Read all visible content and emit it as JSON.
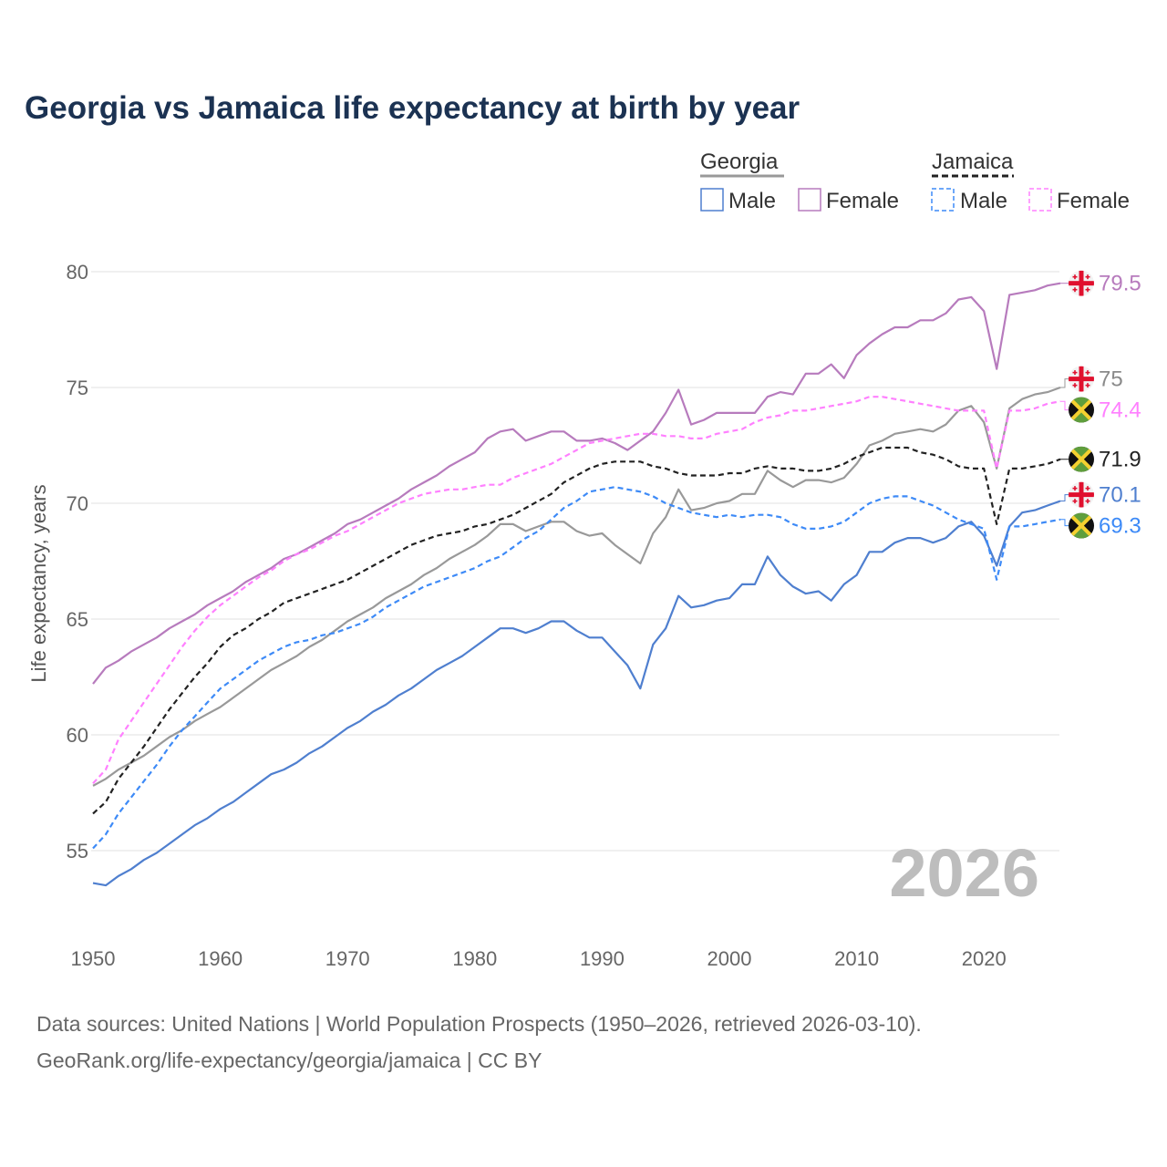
{
  "chart_data": {
    "type": "line",
    "title": "Georgia vs Jamaica life expectancy at birth by year",
    "xlabel": "",
    "ylabel": "Life expectancy, years",
    "xlim": [
      1950,
      2026
    ],
    "ylim": [
      52.5,
      81
    ],
    "x_ticks": [
      "1950",
      "1960",
      "1970",
      "1980",
      "1990",
      "2000",
      "2010",
      "2020"
    ],
    "y_ticks": [
      "55",
      "60",
      "65",
      "70",
      "75",
      "80"
    ],
    "grid": true,
    "current_year_label": "2026",
    "legend": {
      "placement": "top-right",
      "groups": [
        {
          "title": "Georgia",
          "items": [
            "Male",
            "Female"
          ]
        },
        {
          "title": "Jamaica",
          "items": [
            "Male",
            "Female"
          ]
        }
      ]
    },
    "x_start": 1950,
    "series": [
      {
        "name": "Georgia Female",
        "country": "georgia",
        "color": "#b77bbd",
        "dashed": false,
        "end_label": "79.5",
        "values": [
          62.2,
          62.9,
          63.2,
          63.6,
          63.9,
          64.2,
          64.6,
          64.9,
          65.2,
          65.6,
          65.9,
          66.2,
          66.6,
          66.9,
          67.2,
          67.6,
          67.8,
          68.1,
          68.4,
          68.7,
          69.1,
          69.3,
          69.6,
          69.9,
          70.2,
          70.6,
          70.9,
          71.2,
          71.6,
          71.9,
          72.2,
          72.8,
          73.1,
          73.2,
          72.7,
          72.9,
          73.1,
          73.1,
          72.7,
          72.7,
          72.8,
          72.6,
          72.3,
          72.7,
          73.1,
          73.9,
          74.9,
          73.4,
          73.6,
          73.9,
          73.9,
          73.9,
          73.9,
          74.6,
          74.8,
          74.7,
          75.6,
          75.6,
          76.0,
          75.4,
          76.4,
          76.9,
          77.3,
          77.6,
          77.6,
          77.9,
          77.9,
          78.2,
          78.8,
          78.9,
          78.3,
          75.8,
          79.0,
          79.1,
          79.2,
          79.4,
          79.5
        ]
      },
      {
        "name": "Georgia Total",
        "country": "georgia",
        "color": "#999999",
        "dashed": false,
        "end_label": "75",
        "values": [
          57.8,
          58.1,
          58.5,
          58.8,
          59.1,
          59.5,
          59.9,
          60.2,
          60.6,
          60.9,
          61.2,
          61.6,
          62.0,
          62.4,
          62.8,
          63.1,
          63.4,
          63.8,
          64.1,
          64.5,
          64.9,
          65.2,
          65.5,
          65.9,
          66.2,
          66.5,
          66.9,
          67.2,
          67.6,
          67.9,
          68.2,
          68.6,
          69.1,
          69.1,
          68.8,
          69.0,
          69.2,
          69.2,
          68.8,
          68.6,
          68.7,
          68.2,
          67.8,
          67.4,
          68.7,
          69.4,
          70.6,
          69.7,
          69.8,
          70.0,
          70.1,
          70.4,
          70.4,
          71.4,
          71.0,
          70.7,
          71.0,
          71.0,
          70.9,
          71.1,
          71.7,
          72.5,
          72.7,
          73.0,
          73.1,
          73.2,
          73.1,
          73.4,
          74.0,
          74.2,
          73.5,
          71.5,
          74.1,
          74.5,
          74.7,
          74.8,
          75.0
        ]
      },
      {
        "name": "Jamaica Female",
        "country": "jamaica",
        "color": "#ff80ff",
        "dashed": true,
        "end_label": "74.4",
        "values": [
          57.9,
          58.5,
          59.8,
          60.6,
          61.4,
          62.2,
          63.0,
          63.8,
          64.5,
          65.1,
          65.6,
          66.0,
          66.4,
          66.8,
          67.1,
          67.5,
          67.8,
          68.0,
          68.3,
          68.6,
          68.8,
          69.1,
          69.4,
          69.7,
          70.0,
          70.2,
          70.4,
          70.5,
          70.6,
          70.6,
          70.7,
          70.8,
          70.8,
          71.1,
          71.3,
          71.5,
          71.7,
          72.0,
          72.3,
          72.6,
          72.7,
          72.8,
          72.9,
          73.0,
          73.0,
          72.9,
          72.9,
          72.8,
          72.8,
          73.0,
          73.1,
          73.2,
          73.5,
          73.7,
          73.8,
          74.0,
          74.0,
          74.1,
          74.2,
          74.3,
          74.4,
          74.6,
          74.6,
          74.5,
          74.4,
          74.3,
          74.2,
          74.1,
          74.0,
          74.0,
          74.0,
          71.5,
          74.0,
          74.0,
          74.1,
          74.3,
          74.4
        ]
      },
      {
        "name": "Jamaica Total",
        "country": "jamaica",
        "color": "#222222",
        "dashed": true,
        "end_label": "71.9",
        "values": [
          56.6,
          57.1,
          58.1,
          58.8,
          59.5,
          60.3,
          61.1,
          61.8,
          62.5,
          63.1,
          63.8,
          64.3,
          64.6,
          65.0,
          65.3,
          65.7,
          65.9,
          66.1,
          66.3,
          66.5,
          66.7,
          67.0,
          67.3,
          67.6,
          67.9,
          68.2,
          68.4,
          68.6,
          68.7,
          68.8,
          69.0,
          69.1,
          69.3,
          69.5,
          69.8,
          70.1,
          70.4,
          70.9,
          71.2,
          71.5,
          71.7,
          71.8,
          71.8,
          71.8,
          71.6,
          71.5,
          71.3,
          71.2,
          71.2,
          71.2,
          71.3,
          71.3,
          71.5,
          71.6,
          71.5,
          71.5,
          71.4,
          71.4,
          71.5,
          71.7,
          72.0,
          72.2,
          72.4,
          72.4,
          72.4,
          72.2,
          72.1,
          71.9,
          71.6,
          71.5,
          71.5,
          69.1,
          71.5,
          71.5,
          71.6,
          71.7,
          71.9
        ]
      },
      {
        "name": "Georgia Male",
        "country": "georgia",
        "color": "#4f7fcf",
        "dashed": false,
        "end_label": "70.1",
        "values": [
          53.6,
          53.5,
          53.9,
          54.2,
          54.6,
          54.9,
          55.3,
          55.7,
          56.1,
          56.4,
          56.8,
          57.1,
          57.5,
          57.9,
          58.3,
          58.5,
          58.8,
          59.2,
          59.5,
          59.9,
          60.3,
          60.6,
          61.0,
          61.3,
          61.7,
          62.0,
          62.4,
          62.8,
          63.1,
          63.4,
          63.8,
          64.2,
          64.6,
          64.6,
          64.4,
          64.6,
          64.9,
          64.9,
          64.5,
          64.2,
          64.2,
          63.6,
          63.0,
          62.0,
          63.9,
          64.6,
          66.0,
          65.5,
          65.6,
          65.8,
          65.9,
          66.5,
          66.5,
          67.7,
          66.9,
          66.4,
          66.1,
          66.2,
          65.8,
          66.5,
          66.9,
          67.9,
          67.9,
          68.3,
          68.5,
          68.5,
          68.3,
          68.5,
          69.0,
          69.2,
          68.6,
          67.3,
          69.0,
          69.6,
          69.7,
          69.9,
          70.1
        ]
      },
      {
        "name": "Jamaica Male",
        "country": "jamaica",
        "color": "#3d8af7",
        "dashed": true,
        "end_label": "69.3",
        "values": [
          55.1,
          55.7,
          56.6,
          57.3,
          58.0,
          58.7,
          59.5,
          60.2,
          60.8,
          61.4,
          62.0,
          62.4,
          62.8,
          63.2,
          63.5,
          63.8,
          64.0,
          64.1,
          64.3,
          64.4,
          64.6,
          64.8,
          65.1,
          65.5,
          65.8,
          66.1,
          66.4,
          66.6,
          66.8,
          67.0,
          67.2,
          67.5,
          67.7,
          68.1,
          68.5,
          68.8,
          69.3,
          69.8,
          70.1,
          70.5,
          70.6,
          70.7,
          70.6,
          70.5,
          70.3,
          70.0,
          69.8,
          69.6,
          69.5,
          69.4,
          69.5,
          69.4,
          69.5,
          69.5,
          69.4,
          69.1,
          68.9,
          68.9,
          69.0,
          69.2,
          69.6,
          70.0,
          70.2,
          70.3,
          70.3,
          70.1,
          69.9,
          69.6,
          69.3,
          69.1,
          68.9,
          66.7,
          69.0,
          69.0,
          69.1,
          69.2,
          69.3
        ]
      }
    ]
  },
  "footer": {
    "line1": "Data sources: United Nations | World Population Prospects (1950–2026, retrieved 2026-03-10).",
    "line2": "GeoRank.org/life-expectancy/georgia/jamaica | CC BY"
  }
}
